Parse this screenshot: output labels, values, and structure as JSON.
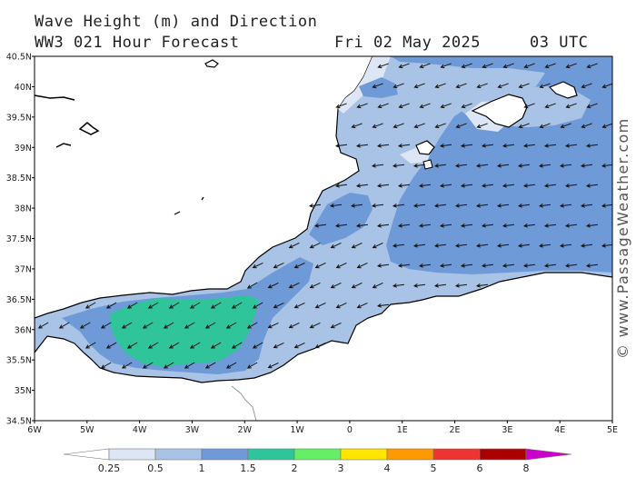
{
  "header": {
    "title": "Wave Height (m) and Direction",
    "model": "WW3 021 Hour Forecast",
    "date": "Fri 02 May 2025",
    "time": "03 UTC"
  },
  "axes": {
    "lat_labels": [
      "40.5N",
      "40N",
      "39.5N",
      "39N",
      "38.5N",
      "38N",
      "37.5N",
      "37N",
      "36.5N",
      "36N",
      "35.5N",
      "35N",
      "34.5N"
    ],
    "lon_labels": [
      "6W",
      "5W",
      "4W",
      "3W",
      "2W",
      "1W",
      "0",
      "1E",
      "2E",
      "3E",
      "4E",
      "5E"
    ]
  },
  "credit": "© www.PassageWeather.com",
  "legend": {
    "unit": "m",
    "labels": [
      "0.25",
      "0.5",
      "1",
      "1.5",
      "2",
      "3",
      "4",
      "5",
      "6",
      "8"
    ],
    "colors": [
      "#ffffff",
      "#dde6f5",
      "#a9c3e6",
      "#6f9ad8",
      "#2fc49a",
      "#66ee66",
      "#ffe600",
      "#ff9900",
      "#ee3333",
      "#aa0000",
      "#cc00cc"
    ]
  }
}
